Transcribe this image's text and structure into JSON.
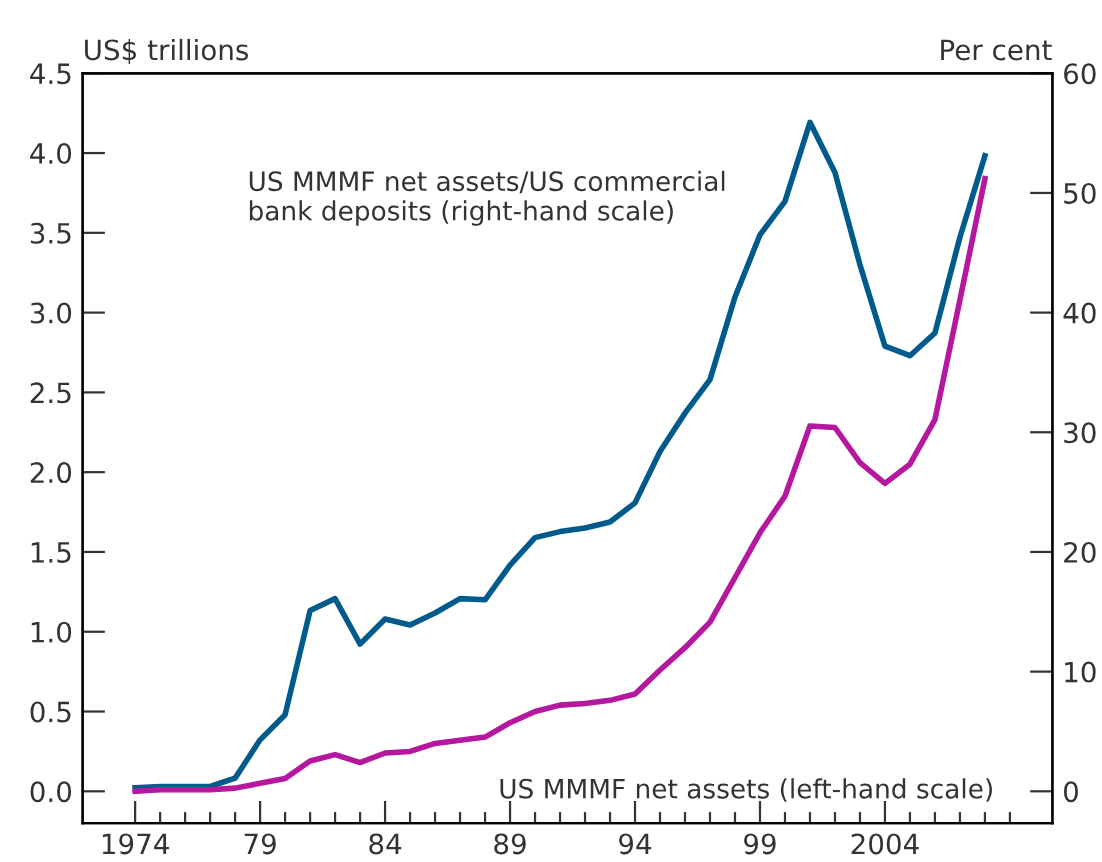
{
  "chart_data": {
    "type": "line",
    "ylabel": "US$ trillions",
    "y2label": "Per cent",
    "x": [
      1974,
      1975,
      1976,
      1977,
      1978,
      1979,
      1980,
      1981,
      1982,
      1983,
      1984,
      1985,
      1986,
      1987,
      1988,
      1989,
      1990,
      1991,
      1992,
      1993,
      1994,
      1995,
      1996,
      1997,
      1998,
      1999,
      2000,
      2001,
      2002,
      2003,
      2004,
      2005,
      2006,
      2007,
      2008
    ],
    "series": [
      {
        "name": "US MMMF net assets/US commercial bank deposits (right-hand scale)",
        "color": "#005a8c",
        "axis": "y2",
        "values": [
          0.3,
          0.4,
          0.4,
          0.4,
          1.1,
          4.3,
          6.4,
          15.1,
          16.1,
          12.3,
          14.4,
          13.9,
          14.9,
          16.1,
          16.0,
          18.9,
          21.2,
          21.7,
          22.0,
          22.5,
          24.1,
          28.4,
          31.6,
          34.4,
          41.3,
          46.5,
          49.3,
          55.9,
          51.7,
          44.0,
          37.2,
          36.4,
          38.3,
          46.3,
          53.1
        ]
      },
      {
        "name": "US MMMF net assets (left-hand scale)",
        "color": "#b5179e",
        "values": [
          0.0,
          0.01,
          0.01,
          0.01,
          0.02,
          0.05,
          0.08,
          0.19,
          0.23,
          0.18,
          0.24,
          0.25,
          0.3,
          0.32,
          0.34,
          0.43,
          0.5,
          0.54,
          0.55,
          0.57,
          0.61,
          0.76,
          0.9,
          1.06,
          1.34,
          1.62,
          1.85,
          2.29,
          2.28,
          2.06,
          1.93,
          2.05,
          2.33,
          3.08,
          3.84
        ]
      }
    ],
    "xlim": [
      1971.9,
      2010.7
    ],
    "xticks": [
      {
        "value": 1974,
        "label": "1974"
      },
      {
        "value": 1975,
        "label": null
      },
      {
        "value": 1976,
        "label": null
      },
      {
        "value": 1977,
        "label": null
      },
      {
        "value": 1978,
        "label": null
      },
      {
        "value": 1979,
        "label": "79"
      },
      {
        "value": 1980,
        "label": null
      },
      {
        "value": 1981,
        "label": null
      },
      {
        "value": 1982,
        "label": null
      },
      {
        "value": 1983,
        "label": null
      },
      {
        "value": 1984,
        "label": "84"
      },
      {
        "value": 1985,
        "label": null
      },
      {
        "value": 1986,
        "label": null
      },
      {
        "value": 1987,
        "label": null
      },
      {
        "value": 1988,
        "label": null
      },
      {
        "value": 1989,
        "label": "89"
      },
      {
        "value": 1990,
        "label": null
      },
      {
        "value": 1991,
        "label": null
      },
      {
        "value": 1992,
        "label": null
      },
      {
        "value": 1993,
        "label": null
      },
      {
        "value": 1994,
        "label": "94"
      },
      {
        "value": 1995,
        "label": null
      },
      {
        "value": 1996,
        "label": null
      },
      {
        "value": 1997,
        "label": null
      },
      {
        "value": 1998,
        "label": null
      },
      {
        "value": 1999,
        "label": "99"
      },
      {
        "value": 2000,
        "label": null
      },
      {
        "value": 2001,
        "label": null
      },
      {
        "value": 2002,
        "label": null
      },
      {
        "value": 2003,
        "label": null
      },
      {
        "value": 2004,
        "label": "2004"
      },
      {
        "value": 2005,
        "label": null
      },
      {
        "value": 2006,
        "label": null
      },
      {
        "value": 2007,
        "label": null
      },
      {
        "value": 2008,
        "label": null
      },
      {
        "value": 2009,
        "label": null
      }
    ],
    "ylim": [
      -0.2,
      4.5
    ],
    "yticks": [
      {
        "value": 0,
        "label": "0.0"
      },
      {
        "value": 0.5,
        "label": "0.5"
      },
      {
        "value": 1,
        "label": "1.0"
      },
      {
        "value": 1.5,
        "label": "1.5"
      },
      {
        "value": 2,
        "label": "2.0"
      },
      {
        "value": 2.5,
        "label": "2.5"
      },
      {
        "value": 3,
        "label": "3.0"
      },
      {
        "value": 3.5,
        "label": "3.5"
      },
      {
        "value": 4,
        "label": "4.0"
      },
      {
        "value": 4.5,
        "label": "4.5"
      }
    ],
    "y2lim": [
      -2.667,
      60
    ],
    "y2ticks": [
      0,
      10,
      20,
      30,
      40,
      50,
      60
    ],
    "grid": false,
    "legend": false,
    "marker": "none",
    "line_style": "solid"
  }
}
